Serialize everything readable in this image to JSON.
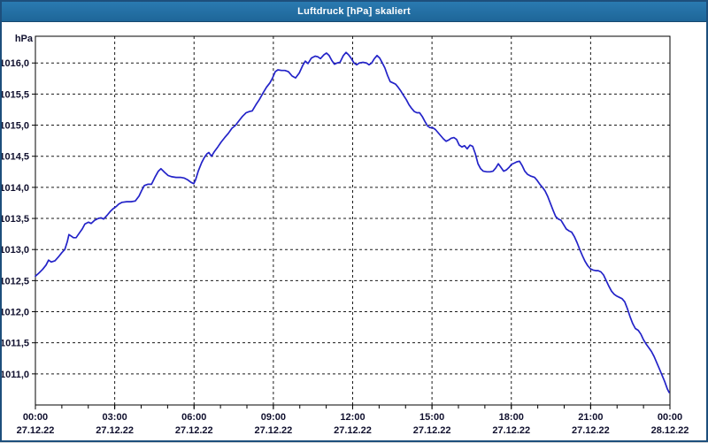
{
  "window": {
    "title": "Luftdruck [hPa] skaliert"
  },
  "colors": {
    "window_border": "#1d4f7c",
    "titlebar_bg": "#2173a8",
    "title_text": "#ffffff",
    "plot_border": "#000000",
    "grid": "#1a1a1a",
    "tick_label": "#10102e",
    "line": "#2323c8"
  },
  "chart_data": {
    "type": "line",
    "title": "Luftdruck [hPa] skaliert",
    "unit_label": "hPa",
    "xlabel": "",
    "ylabel": "hPa",
    "grid": "dashed",
    "legend_position": "none",
    "xlim_hours": [
      0,
      24
    ],
    "ylim": [
      1010.5,
      1016.43
    ],
    "y_ticks": [
      {
        "v": 1016.0,
        "label": "1016,0"
      },
      {
        "v": 1015.5,
        "label": "1015,5"
      },
      {
        "v": 1015.0,
        "label": "1015,0"
      },
      {
        "v": 1014.5,
        "label": "1014,5"
      },
      {
        "v": 1014.0,
        "label": "1014,0"
      },
      {
        "v": 1013.5,
        "label": "1013,5"
      },
      {
        "v": 1013.0,
        "label": "1013,0"
      },
      {
        "v": 1012.5,
        "label": "1012,5"
      },
      {
        "v": 1012.0,
        "label": "1012,0"
      },
      {
        "v": 1011.5,
        "label": "1011,5"
      },
      {
        "v": 1011.0,
        "label": "1011,0"
      }
    ],
    "x_gridlines_hours": [
      3,
      6,
      9,
      12,
      15,
      18,
      21
    ],
    "x_minor_tick_step_hours": 1,
    "x_ticks": [
      {
        "h": 0,
        "time": "00:00",
        "date": "27.12.22"
      },
      {
        "h": 3,
        "time": "03:00",
        "date": "27.12.22"
      },
      {
        "h": 6,
        "time": "06:00",
        "date": "27.12.22"
      },
      {
        "h": 9,
        "time": "09:00",
        "date": "27.12.22"
      },
      {
        "h": 12,
        "time": "12:00",
        "date": "27.12.22"
      },
      {
        "h": 15,
        "time": "15:00",
        "date": "27.12.22"
      },
      {
        "h": 18,
        "time": "18:00",
        "date": "27.12.22"
      },
      {
        "h": 21,
        "time": "21:00",
        "date": "27.12.22"
      },
      {
        "h": 24,
        "time": "00:00",
        "date": "28.12.22"
      }
    ],
    "series": [
      {
        "name": "Luftdruck",
        "color": "#2323c8",
        "points": [
          [
            0.0,
            1012.57
          ],
          [
            0.13,
            1012.62
          ],
          [
            0.27,
            1012.68
          ],
          [
            0.4,
            1012.75
          ],
          [
            0.5,
            1012.83
          ],
          [
            0.6,
            1012.8
          ],
          [
            0.74,
            1012.82
          ],
          [
            0.87,
            1012.88
          ],
          [
            1.0,
            1012.95
          ],
          [
            1.11,
            1013.0
          ],
          [
            1.21,
            1013.13
          ],
          [
            1.27,
            1013.24
          ],
          [
            1.34,
            1013.22
          ],
          [
            1.44,
            1013.19
          ],
          [
            1.54,
            1013.19
          ],
          [
            1.67,
            1013.27
          ],
          [
            1.77,
            1013.33
          ],
          [
            1.87,
            1013.41
          ],
          [
            2.01,
            1013.44
          ],
          [
            2.11,
            1013.42
          ],
          [
            2.24,
            1013.47
          ],
          [
            2.38,
            1013.5
          ],
          [
            2.48,
            1013.51
          ],
          [
            2.58,
            1013.49
          ],
          [
            2.71,
            1013.55
          ],
          [
            2.85,
            1013.62
          ],
          [
            2.95,
            1013.66
          ],
          [
            3.05,
            1013.69
          ],
          [
            3.15,
            1013.73
          ],
          [
            3.28,
            1013.76
          ],
          [
            3.45,
            1013.77
          ],
          [
            3.62,
            1013.77
          ],
          [
            3.78,
            1013.78
          ],
          [
            3.92,
            1013.86
          ],
          [
            4.02,
            1013.95
          ],
          [
            4.12,
            1014.03
          ],
          [
            4.25,
            1014.05
          ],
          [
            4.39,
            1014.05
          ],
          [
            4.52,
            1014.16
          ],
          [
            4.65,
            1014.26
          ],
          [
            4.75,
            1014.3
          ],
          [
            4.89,
            1014.24
          ],
          [
            5.02,
            1014.19
          ],
          [
            5.16,
            1014.17
          ],
          [
            5.32,
            1014.16
          ],
          [
            5.49,
            1014.16
          ],
          [
            5.62,
            1014.15
          ],
          [
            5.76,
            1014.12
          ],
          [
            5.89,
            1014.08
          ],
          [
            5.99,
            1014.06
          ],
          [
            6.06,
            1014.12
          ],
          [
            6.16,
            1014.26
          ],
          [
            6.29,
            1014.4
          ],
          [
            6.39,
            1014.48
          ],
          [
            6.49,
            1014.54
          ],
          [
            6.56,
            1014.56
          ],
          [
            6.66,
            1014.5
          ],
          [
            6.76,
            1014.57
          ],
          [
            6.9,
            1014.65
          ],
          [
            7.03,
            1014.73
          ],
          [
            7.16,
            1014.8
          ],
          [
            7.3,
            1014.87
          ],
          [
            7.43,
            1014.95
          ],
          [
            7.57,
            1015.0
          ],
          [
            7.7,
            1015.07
          ],
          [
            7.83,
            1015.14
          ],
          [
            7.97,
            1015.2
          ],
          [
            8.1,
            1015.22
          ],
          [
            8.2,
            1015.23
          ],
          [
            8.34,
            1015.33
          ],
          [
            8.47,
            1015.41
          ],
          [
            8.6,
            1015.51
          ],
          [
            8.74,
            1015.61
          ],
          [
            8.87,
            1015.68
          ],
          [
            8.97,
            1015.76
          ],
          [
            9.07,
            1015.86
          ],
          [
            9.17,
            1015.89
          ],
          [
            9.31,
            1015.88
          ],
          [
            9.44,
            1015.88
          ],
          [
            9.57,
            1015.86
          ],
          [
            9.71,
            1015.79
          ],
          [
            9.84,
            1015.76
          ],
          [
            9.98,
            1015.84
          ],
          [
            10.11,
            1015.96
          ],
          [
            10.21,
            1016.03
          ],
          [
            10.31,
            1015.99
          ],
          [
            10.44,
            1016.08
          ],
          [
            10.58,
            1016.11
          ],
          [
            10.68,
            1016.1
          ],
          [
            10.78,
            1016.07
          ],
          [
            10.91,
            1016.13
          ],
          [
            11.01,
            1016.16
          ],
          [
            11.11,
            1016.12
          ],
          [
            11.21,
            1016.04
          ],
          [
            11.31,
            1015.98
          ],
          [
            11.41,
            1016.0
          ],
          [
            11.52,
            1016.01
          ],
          [
            11.65,
            1016.12
          ],
          [
            11.75,
            1016.17
          ],
          [
            11.85,
            1016.13
          ],
          [
            11.95,
            1016.07
          ],
          [
            12.05,
            1016.0
          ],
          [
            12.15,
            1015.97
          ],
          [
            12.25,
            1016.0
          ],
          [
            12.39,
            1016.01
          ],
          [
            12.52,
            1016.0
          ],
          [
            12.62,
            1015.97
          ],
          [
            12.72,
            1016.0
          ],
          [
            12.82,
            1016.07
          ],
          [
            12.92,
            1016.12
          ],
          [
            13.02,
            1016.08
          ],
          [
            13.12,
            1016.0
          ],
          [
            13.22,
            1015.92
          ],
          [
            13.32,
            1015.8
          ],
          [
            13.42,
            1015.7
          ],
          [
            13.52,
            1015.68
          ],
          [
            13.62,
            1015.66
          ],
          [
            13.72,
            1015.61
          ],
          [
            13.82,
            1015.55
          ],
          [
            13.92,
            1015.48
          ],
          [
            14.03,
            1015.41
          ],
          [
            14.13,
            1015.33
          ],
          [
            14.23,
            1015.27
          ],
          [
            14.33,
            1015.22
          ],
          [
            14.43,
            1015.2
          ],
          [
            14.53,
            1015.2
          ],
          [
            14.63,
            1015.14
          ],
          [
            14.73,
            1015.06
          ],
          [
            14.83,
            1014.99
          ],
          [
            14.93,
            1014.96
          ],
          [
            15.03,
            1014.96
          ],
          [
            15.13,
            1014.93
          ],
          [
            15.23,
            1014.88
          ],
          [
            15.33,
            1014.83
          ],
          [
            15.43,
            1014.78
          ],
          [
            15.53,
            1014.74
          ],
          [
            15.63,
            1014.76
          ],
          [
            15.73,
            1014.79
          ],
          [
            15.83,
            1014.8
          ],
          [
            15.93,
            1014.77
          ],
          [
            16.03,
            1014.68
          ],
          [
            16.13,
            1014.65
          ],
          [
            16.23,
            1014.67
          ],
          [
            16.33,
            1014.62
          ],
          [
            16.44,
            1014.68
          ],
          [
            16.54,
            1014.66
          ],
          [
            16.64,
            1014.54
          ],
          [
            16.74,
            1014.38
          ],
          [
            16.84,
            1014.3
          ],
          [
            16.94,
            1014.26
          ],
          [
            17.07,
            1014.25
          ],
          [
            17.2,
            1014.25
          ],
          [
            17.31,
            1014.26
          ],
          [
            17.41,
            1014.31
          ],
          [
            17.51,
            1014.38
          ],
          [
            17.61,
            1014.32
          ],
          [
            17.71,
            1014.26
          ],
          [
            17.81,
            1014.28
          ],
          [
            17.91,
            1014.32
          ],
          [
            18.01,
            1014.37
          ],
          [
            18.11,
            1014.39
          ],
          [
            18.21,
            1014.41
          ],
          [
            18.31,
            1014.42
          ],
          [
            18.41,
            1014.35
          ],
          [
            18.51,
            1014.26
          ],
          [
            18.61,
            1014.21
          ],
          [
            18.74,
            1014.18
          ],
          [
            18.88,
            1014.16
          ],
          [
            18.98,
            1014.11
          ],
          [
            19.08,
            1014.05
          ],
          [
            19.18,
            1014.0
          ],
          [
            19.28,
            1013.94
          ],
          [
            19.38,
            1013.85
          ],
          [
            19.48,
            1013.74
          ],
          [
            19.58,
            1013.63
          ],
          [
            19.68,
            1013.53
          ],
          [
            19.78,
            1013.49
          ],
          [
            19.88,
            1013.47
          ],
          [
            19.98,
            1013.4
          ],
          [
            20.08,
            1013.33
          ],
          [
            20.18,
            1013.3
          ],
          [
            20.28,
            1013.28
          ],
          [
            20.38,
            1013.21
          ],
          [
            20.49,
            1013.11
          ],
          [
            20.59,
            1013.0
          ],
          [
            20.69,
            1012.9
          ],
          [
            20.79,
            1012.81
          ],
          [
            20.89,
            1012.74
          ],
          [
            20.99,
            1012.69
          ],
          [
            21.09,
            1012.67
          ],
          [
            21.19,
            1012.66
          ],
          [
            21.29,
            1012.66
          ],
          [
            21.39,
            1012.64
          ],
          [
            21.49,
            1012.59
          ],
          [
            21.59,
            1012.5
          ],
          [
            21.69,
            1012.41
          ],
          [
            21.79,
            1012.33
          ],
          [
            21.89,
            1012.28
          ],
          [
            21.99,
            1012.25
          ],
          [
            22.09,
            1012.23
          ],
          [
            22.19,
            1012.21
          ],
          [
            22.29,
            1012.16
          ],
          [
            22.39,
            1012.05
          ],
          [
            22.49,
            1011.92
          ],
          [
            22.59,
            1011.81
          ],
          [
            22.69,
            1011.73
          ],
          [
            22.8,
            1011.7
          ],
          [
            22.9,
            1011.64
          ],
          [
            23.0,
            1011.55
          ],
          [
            23.1,
            1011.48
          ],
          [
            23.2,
            1011.42
          ],
          [
            23.3,
            1011.36
          ],
          [
            23.4,
            1011.28
          ],
          [
            23.5,
            1011.18
          ],
          [
            23.6,
            1011.08
          ],
          [
            23.7,
            1010.98
          ],
          [
            23.8,
            1010.88
          ],
          [
            23.9,
            1010.76
          ],
          [
            23.97,
            1010.7
          ]
        ]
      }
    ]
  }
}
